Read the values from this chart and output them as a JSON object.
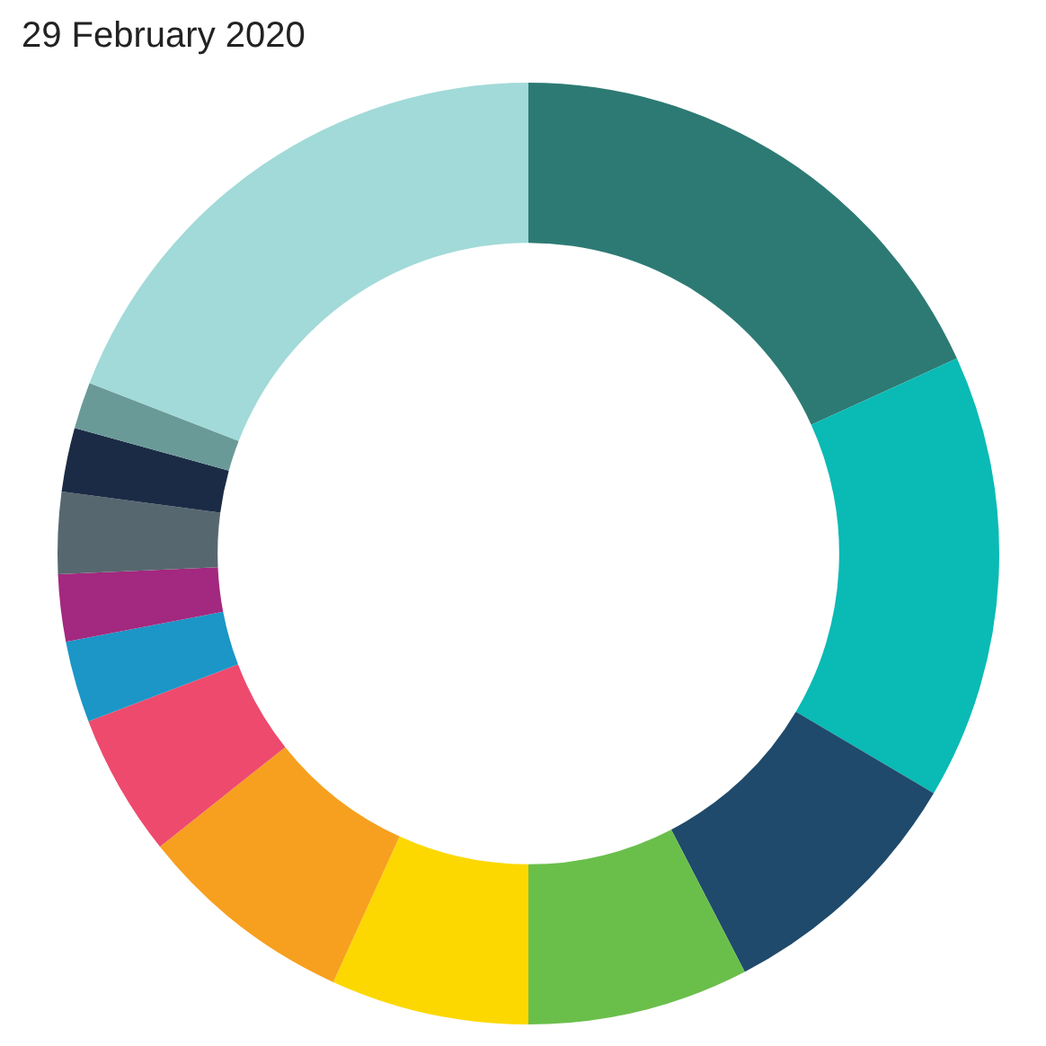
{
  "chart_data": {
    "type": "donut",
    "title": "29 February 2020",
    "categories": [
      null,
      null,
      null,
      null,
      null,
      null,
      null,
      null,
      null,
      null,
      null,
      null,
      null
    ],
    "values": [
      18.2,
      15.3,
      8.9,
      7.6,
      6.8,
      7.5,
      4.9,
      2.8,
      2.3,
      2.8,
      2.2,
      1.6,
      19.1
    ],
    "colors": [
      "#2d7a74",
      "#0abab5",
      "#1f4a6b",
      "#6abf4b",
      "#fcd800",
      "#f7a01f",
      "#ee4a6e",
      "#1b96c6",
      "#a3287f",
      "#57676f",
      "#1c2b45",
      "#6a9a98",
      "#a1dad8"
    ]
  }
}
